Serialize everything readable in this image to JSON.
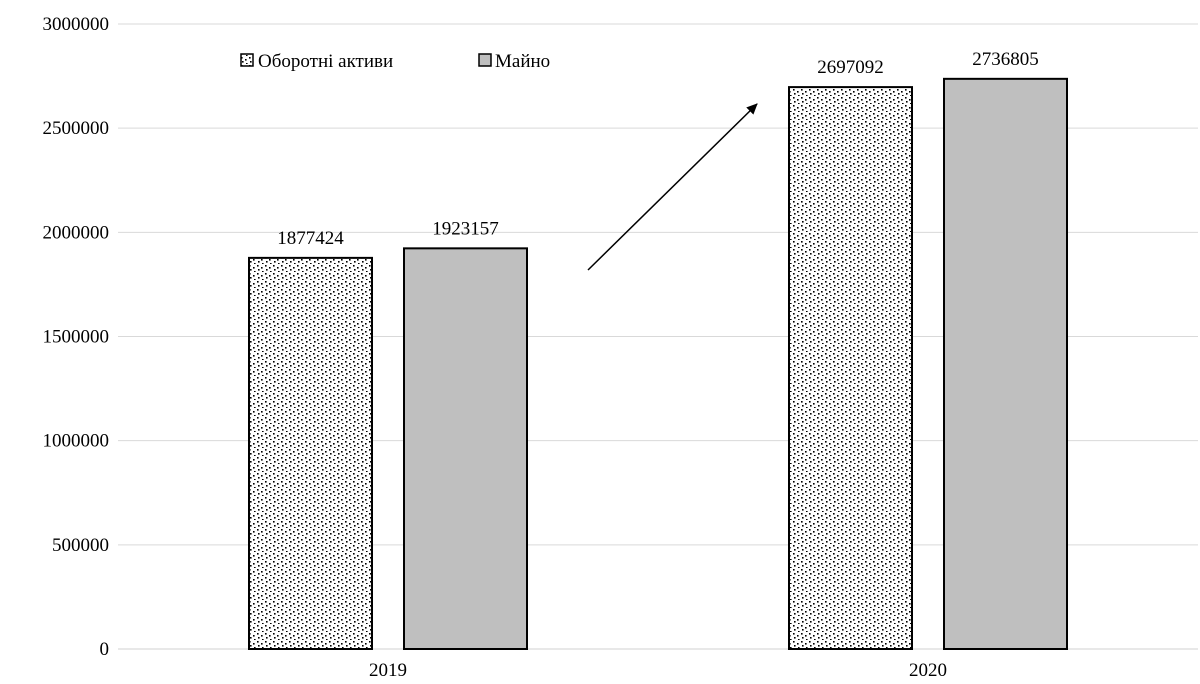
{
  "chart_data": {
    "type": "bar",
    "categories": [
      "2019",
      "2020"
    ],
    "series": [
      {
        "name": "Оборотні активи",
        "values": [
          1877424,
          2697092
        ],
        "pattern": "dotted"
      },
      {
        "name": "Майно",
        "values": [
          1923157,
          2736805
        ],
        "color": "#bfbfbf"
      }
    ],
    "data_labels": [
      [
        "1877424",
        "2697092"
      ],
      [
        "1923157",
        "2736805"
      ]
    ],
    "y_ticks": [
      "0",
      "500000",
      "1000000",
      "1500000",
      "2000000",
      "2500000",
      "3000000"
    ],
    "ylim": [
      0,
      3000000
    ],
    "title": "",
    "xlabel": "",
    "ylabel": "",
    "legend_position": "top-left",
    "grid": true,
    "annotation": "arrow pointing up-right from 2019 group to 2020 group"
  }
}
